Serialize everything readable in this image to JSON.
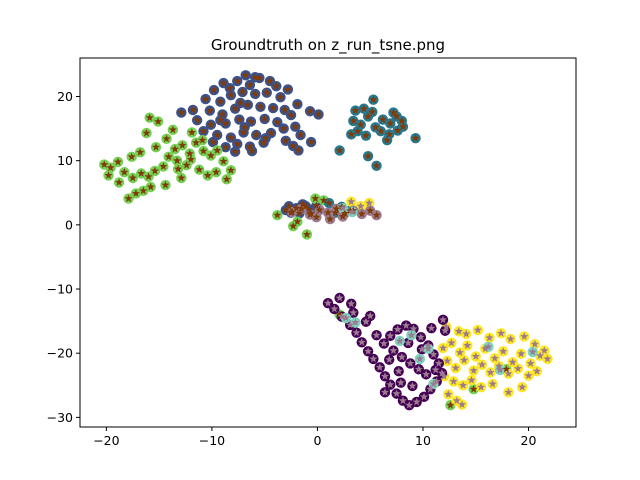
{
  "chart_data": {
    "type": "scatter",
    "title": "Groundtruth on z_run_tsne.png",
    "xlabel": "",
    "ylabel": "",
    "xlim": [
      -22.5,
      24.5
    ],
    "ylim": [
      -31.5,
      26
    ],
    "xticks": [
      -20,
      -10,
      0,
      10,
      20
    ],
    "xtick_labels": [
      "−20",
      "−10",
      "0",
      "10",
      "20"
    ],
    "yticks": [
      -30,
      -20,
      -10,
      0,
      10,
      20
    ],
    "ytick_labels": [
      "−30",
      "−20",
      "−10",
      "0",
      "10",
      "20"
    ],
    "grid": false,
    "legend": false,
    "marker_styles": {
      "outer_marker": "circle",
      "inner_marker": "star"
    },
    "series": [
      {
        "outer_color": "#3b528b",
        "inner_color": "#7f3b08",
        "points": [
          [
            -9.8,
            21.0
          ],
          [
            -8.9,
            22.1
          ],
          [
            -7.6,
            22.4
          ],
          [
            -6.4,
            21.8
          ],
          [
            -5.5,
            22.9
          ],
          [
            -4.5,
            22.4
          ],
          [
            -3.9,
            21.6
          ],
          [
            -10.6,
            19.6
          ],
          [
            -9.2,
            19.2
          ],
          [
            -8.2,
            20.2
          ],
          [
            -7.1,
            20.7
          ],
          [
            -5.9,
            20.4
          ],
          [
            -4.8,
            20.6
          ],
          [
            -3.5,
            19.9
          ],
          [
            -10.2,
            17.8
          ],
          [
            -9.0,
            17.2
          ],
          [
            -7.8,
            18.1
          ],
          [
            -6.6,
            18.7
          ],
          [
            -5.4,
            18.4
          ],
          [
            -4.2,
            18.2
          ],
          [
            -3.1,
            17.9
          ],
          [
            -11.4,
            16.3
          ],
          [
            -10.1,
            15.6
          ],
          [
            -8.7,
            15.8
          ],
          [
            -7.4,
            16.4
          ],
          [
            -6.3,
            16.1
          ],
          [
            -5.0,
            16.5
          ],
          [
            -3.8,
            16.0
          ],
          [
            -2.5,
            17.1
          ],
          [
            -9.5,
            14.0
          ],
          [
            -8.2,
            13.6
          ],
          [
            -7.0,
            14.4
          ],
          [
            -5.8,
            14.0
          ],
          [
            -4.4,
            14.3
          ],
          [
            -3.2,
            15.0
          ],
          [
            -8.7,
            12.1
          ],
          [
            -7.6,
            12.6
          ],
          [
            -6.4,
            12.2
          ],
          [
            -5.1,
            12.8
          ],
          [
            -9.9,
            12.9
          ],
          [
            -2.1,
            15.3
          ],
          [
            -1.6,
            14.0
          ],
          [
            -0.6,
            12.9
          ],
          [
            -11.8,
            17.9
          ],
          [
            -12.9,
            17.5
          ],
          [
            -5.9,
            23.0
          ],
          [
            -8.3,
            21.3
          ],
          [
            -1.9,
            18.8
          ],
          [
            -0.7,
            17.7
          ],
          [
            0.1,
            17.2
          ],
          [
            -6.9,
            15.2
          ],
          [
            -4.9,
            13.5
          ],
          [
            -7.8,
            11.4
          ],
          [
            -2.3,
            12.3
          ],
          [
            -1.8,
            11.6
          ],
          [
            -10.8,
            14.6
          ],
          [
            -6.2,
            11.5
          ],
          [
            -3.0,
            13.1
          ],
          [
            -2.8,
            21.1
          ],
          [
            -9.2,
            16.3
          ],
          [
            -7.3,
            19.0
          ],
          [
            -6.8,
            23.3
          ],
          [
            -2.7,
            2.9
          ],
          [
            -2.0,
            2.6
          ],
          [
            -1.4,
            3.2
          ],
          [
            -0.8,
            2.4
          ],
          [
            -0.1,
            3.0
          ],
          [
            -2.5,
            1.9
          ],
          [
            -1.7,
            1.8
          ],
          [
            -0.6,
            1.8
          ],
          [
            -3.0,
            2.3
          ],
          [
            -1.1,
            2.9
          ]
        ]
      },
      {
        "outer_color": "#75d054",
        "inner_color": "#7f3b08",
        "points": [
          [
            -20.2,
            9.4
          ],
          [
            -19.6,
            8.9
          ],
          [
            -18.9,
            9.8
          ],
          [
            -18.3,
            8.2
          ],
          [
            -17.5,
            7.3
          ],
          [
            -16.7,
            8.0
          ],
          [
            -16.0,
            7.5
          ],
          [
            -15.4,
            8.4
          ],
          [
            -14.6,
            9.1
          ],
          [
            -14.1,
            10.6
          ],
          [
            -13.5,
            11.8
          ],
          [
            -12.8,
            12.4
          ],
          [
            -12.1,
            11.1
          ],
          [
            -11.5,
            12.8
          ],
          [
            -10.8,
            11.5
          ],
          [
            -10.1,
            10.8
          ],
          [
            -9.5,
            11.6
          ],
          [
            -8.9,
            9.9
          ],
          [
            -8.2,
            8.5
          ],
          [
            -12.4,
            9.3
          ],
          [
            -13.2,
            8.7
          ],
          [
            -15.8,
            5.9
          ],
          [
            -16.5,
            5.3
          ],
          [
            -17.2,
            4.9
          ],
          [
            -17.9,
            4.1
          ],
          [
            -18.8,
            6.6
          ],
          [
            -19.8,
            7.7
          ],
          [
            -14.3,
            13.4
          ],
          [
            -13.7,
            14.8
          ],
          [
            -15.1,
            16.1
          ],
          [
            -15.9,
            16.7
          ],
          [
            -16.2,
            14.3
          ],
          [
            -15.3,
            12.1
          ],
          [
            -11.9,
            14.4
          ],
          [
            -11.2,
            8.6
          ],
          [
            -10.4,
            7.7
          ],
          [
            -9.6,
            8.2
          ],
          [
            -8.6,
            7.1
          ],
          [
            -12.9,
            7.3
          ],
          [
            -14.4,
            6.2
          ],
          [
            -16.8,
            11.3
          ],
          [
            -17.6,
            10.6
          ],
          [
            -13.3,
            10.0
          ],
          [
            -12.0,
            10.2
          ],
          [
            -10.9,
            13.2
          ],
          [
            -2.3,
            -0.2
          ],
          [
            -1.0,
            -1.5
          ],
          [
            -0.2,
            4.1
          ],
          [
            0.6,
            3.8
          ],
          [
            2.1,
            -14.0
          ],
          [
            14.8,
            -25.6
          ],
          [
            17.9,
            -22.5
          ],
          [
            12.6,
            -28.1
          ],
          [
            -3.8,
            1.5
          ],
          [
            -1.9,
            0.5
          ]
        ]
      },
      {
        "outer_color": "#2a788e",
        "inner_color": "#7f3b08",
        "points": [
          [
            3.4,
            16.2
          ],
          [
            4.1,
            15.6
          ],
          [
            4.8,
            16.9
          ],
          [
            5.5,
            15.2
          ],
          [
            6.2,
            16.4
          ],
          [
            6.9,
            15.8
          ],
          [
            7.5,
            16.9
          ],
          [
            8.1,
            15.3
          ],
          [
            5.2,
            17.6
          ],
          [
            6.0,
            14.6
          ],
          [
            6.8,
            14.1
          ],
          [
            7.6,
            14.7
          ],
          [
            3.8,
            14.6
          ],
          [
            4.6,
            13.9
          ],
          [
            7.2,
            17.5
          ],
          [
            8.0,
            16.2
          ],
          [
            5.3,
            19.5
          ],
          [
            4.4,
            18.1
          ],
          [
            3.2,
            14.1
          ],
          [
            9.3,
            13.5
          ],
          [
            4.8,
            10.7
          ],
          [
            5.6,
            9.2
          ],
          [
            2.1,
            11.6
          ],
          [
            3.6,
            17.8
          ],
          [
            6.6,
            13.2
          ],
          [
            1.1,
            3.4
          ],
          [
            2.3,
            2.8
          ],
          [
            3.1,
            2.2
          ],
          [
            1.7,
            1.9
          ]
        ]
      },
      {
        "outer_color": "#fde725",
        "inner_color": "#9c7a8f",
        "points": [
          [
            11.9,
            -19.2
          ],
          [
            12.7,
            -18.4
          ],
          [
            13.5,
            -19.9
          ],
          [
            14.2,
            -18.8
          ],
          [
            15.0,
            -20.5
          ],
          [
            15.9,
            -19.3
          ],
          [
            16.8,
            -20.8
          ],
          [
            17.6,
            -19.7
          ],
          [
            18.5,
            -21.4
          ],
          [
            19.3,
            -20.1
          ],
          [
            20.2,
            -21.6
          ],
          [
            21.1,
            -20.4
          ],
          [
            21.5,
            -19.6
          ],
          [
            12.3,
            -21.2
          ],
          [
            13.1,
            -22.3
          ],
          [
            13.9,
            -21.1
          ],
          [
            14.8,
            -22.7
          ],
          [
            15.6,
            -21.8
          ],
          [
            16.4,
            -23.0
          ],
          [
            17.2,
            -22.0
          ],
          [
            18.1,
            -23.2
          ],
          [
            19.0,
            -22.4
          ],
          [
            20.0,
            -23.5
          ],
          [
            20.8,
            -22.8
          ],
          [
            12.0,
            -23.6
          ],
          [
            12.9,
            -24.4
          ],
          [
            13.8,
            -25.0
          ],
          [
            14.6,
            -24.2
          ],
          [
            15.5,
            -25.3
          ],
          [
            12.4,
            -26.4
          ],
          [
            13.2,
            -27.4
          ],
          [
            14.1,
            -17.0
          ],
          [
            15.2,
            -16.4
          ],
          [
            16.3,
            -17.6
          ],
          [
            17.4,
            -16.9
          ],
          [
            18.3,
            -17.8
          ],
          [
            19.6,
            -17.4
          ],
          [
            12.2,
            -15.9
          ],
          [
            13.4,
            -16.6
          ],
          [
            20.6,
            -18.6
          ],
          [
            21.8,
            -20.9
          ],
          [
            19.4,
            -25.3
          ],
          [
            18.1,
            -26.1
          ],
          [
            16.6,
            -24.8
          ],
          [
            13.7,
            -28.0
          ],
          [
            3.2,
            3.6
          ],
          [
            4.1,
            2.9
          ],
          [
            4.9,
            3.4
          ]
        ]
      },
      {
        "outer_color": "#440154",
        "inner_color": "#9c7a8f",
        "points": [
          [
            1.0,
            -12.2
          ],
          [
            1.6,
            -13.1
          ],
          [
            2.3,
            -14.3
          ],
          [
            3.1,
            -15.6
          ],
          [
            3.7,
            -16.8
          ],
          [
            4.2,
            -18.3
          ],
          [
            4.8,
            -19.7
          ],
          [
            5.3,
            -20.9
          ],
          [
            5.9,
            -22.2
          ],
          [
            6.4,
            -23.6
          ],
          [
            6.9,
            -24.9
          ],
          [
            7.5,
            -26.3
          ],
          [
            8.1,
            -27.4
          ],
          [
            8.7,
            -28.1
          ],
          [
            9.4,
            -27.6
          ],
          [
            10.1,
            -26.8
          ],
          [
            10.7,
            -25.6
          ],
          [
            11.3,
            -24.4
          ],
          [
            11.8,
            -23.1
          ],
          [
            11.5,
            -21.6
          ],
          [
            11.0,
            -20.2
          ],
          [
            10.5,
            -18.8
          ],
          [
            9.8,
            -17.5
          ],
          [
            9.1,
            -16.2
          ],
          [
            8.4,
            -15.7
          ],
          [
            7.6,
            -16.3
          ],
          [
            6.9,
            -17.3
          ],
          [
            6.3,
            -18.5
          ],
          [
            7.2,
            -19.6
          ],
          [
            8.0,
            -20.6
          ],
          [
            8.8,
            -21.6
          ],
          [
            9.6,
            -22.5
          ],
          [
            10.3,
            -23.3
          ],
          [
            7.7,
            -22.8
          ],
          [
            6.8,
            -21.0
          ],
          [
            5.6,
            -17.2
          ],
          [
            4.6,
            -15.1
          ],
          [
            2.1,
            -11.4
          ],
          [
            3.4,
            -13.7
          ],
          [
            5.0,
            -14.2
          ],
          [
            12.1,
            -16.5
          ],
          [
            11.9,
            -14.8
          ],
          [
            10.8,
            -16.1
          ],
          [
            9.0,
            -25.1
          ],
          [
            7.9,
            -24.6
          ],
          [
            6.4,
            -26.1
          ],
          [
            9.9,
            -19.4
          ],
          [
            8.6,
            -18.4
          ],
          [
            11.2,
            -22.6
          ],
          [
            3.2,
            -12.3
          ]
        ]
      },
      {
        "outer_color": "#9c7a8f",
        "inner_color": "#7f3b08",
        "points": [
          [
            -2.4,
            2.0
          ],
          [
            -1.5,
            2.5
          ],
          [
            -0.7,
            1.6
          ],
          [
            0.2,
            2.3
          ],
          [
            1.0,
            1.9
          ],
          [
            1.8,
            2.5
          ],
          [
            2.6,
            1.8
          ],
          [
            3.4,
            2.2
          ],
          [
            4.2,
            1.7
          ],
          [
            5.0,
            2.2
          ],
          [
            5.6,
            1.5
          ],
          [
            -0.1,
            1.2
          ],
          [
            1.2,
            0.9
          ],
          [
            2.4,
            1.3
          ]
        ]
      },
      {
        "outer_color": "#7fd4c1",
        "inner_color": "#9c7a8f",
        "points": [
          [
            2.7,
            -14.5
          ],
          [
            3.6,
            -15.2
          ],
          [
            7.8,
            -18.1
          ],
          [
            8.9,
            -17.2
          ],
          [
            9.7,
            -20.9
          ],
          [
            10.5,
            -19.3
          ],
          [
            11.0,
            -24.8
          ],
          [
            17.3,
            -22.6
          ],
          [
            16.2,
            -19.0
          ],
          [
            20.4,
            -19.8
          ],
          [
            2.4,
            2.6
          ],
          [
            3.3,
            2.0
          ]
        ]
      }
    ]
  }
}
